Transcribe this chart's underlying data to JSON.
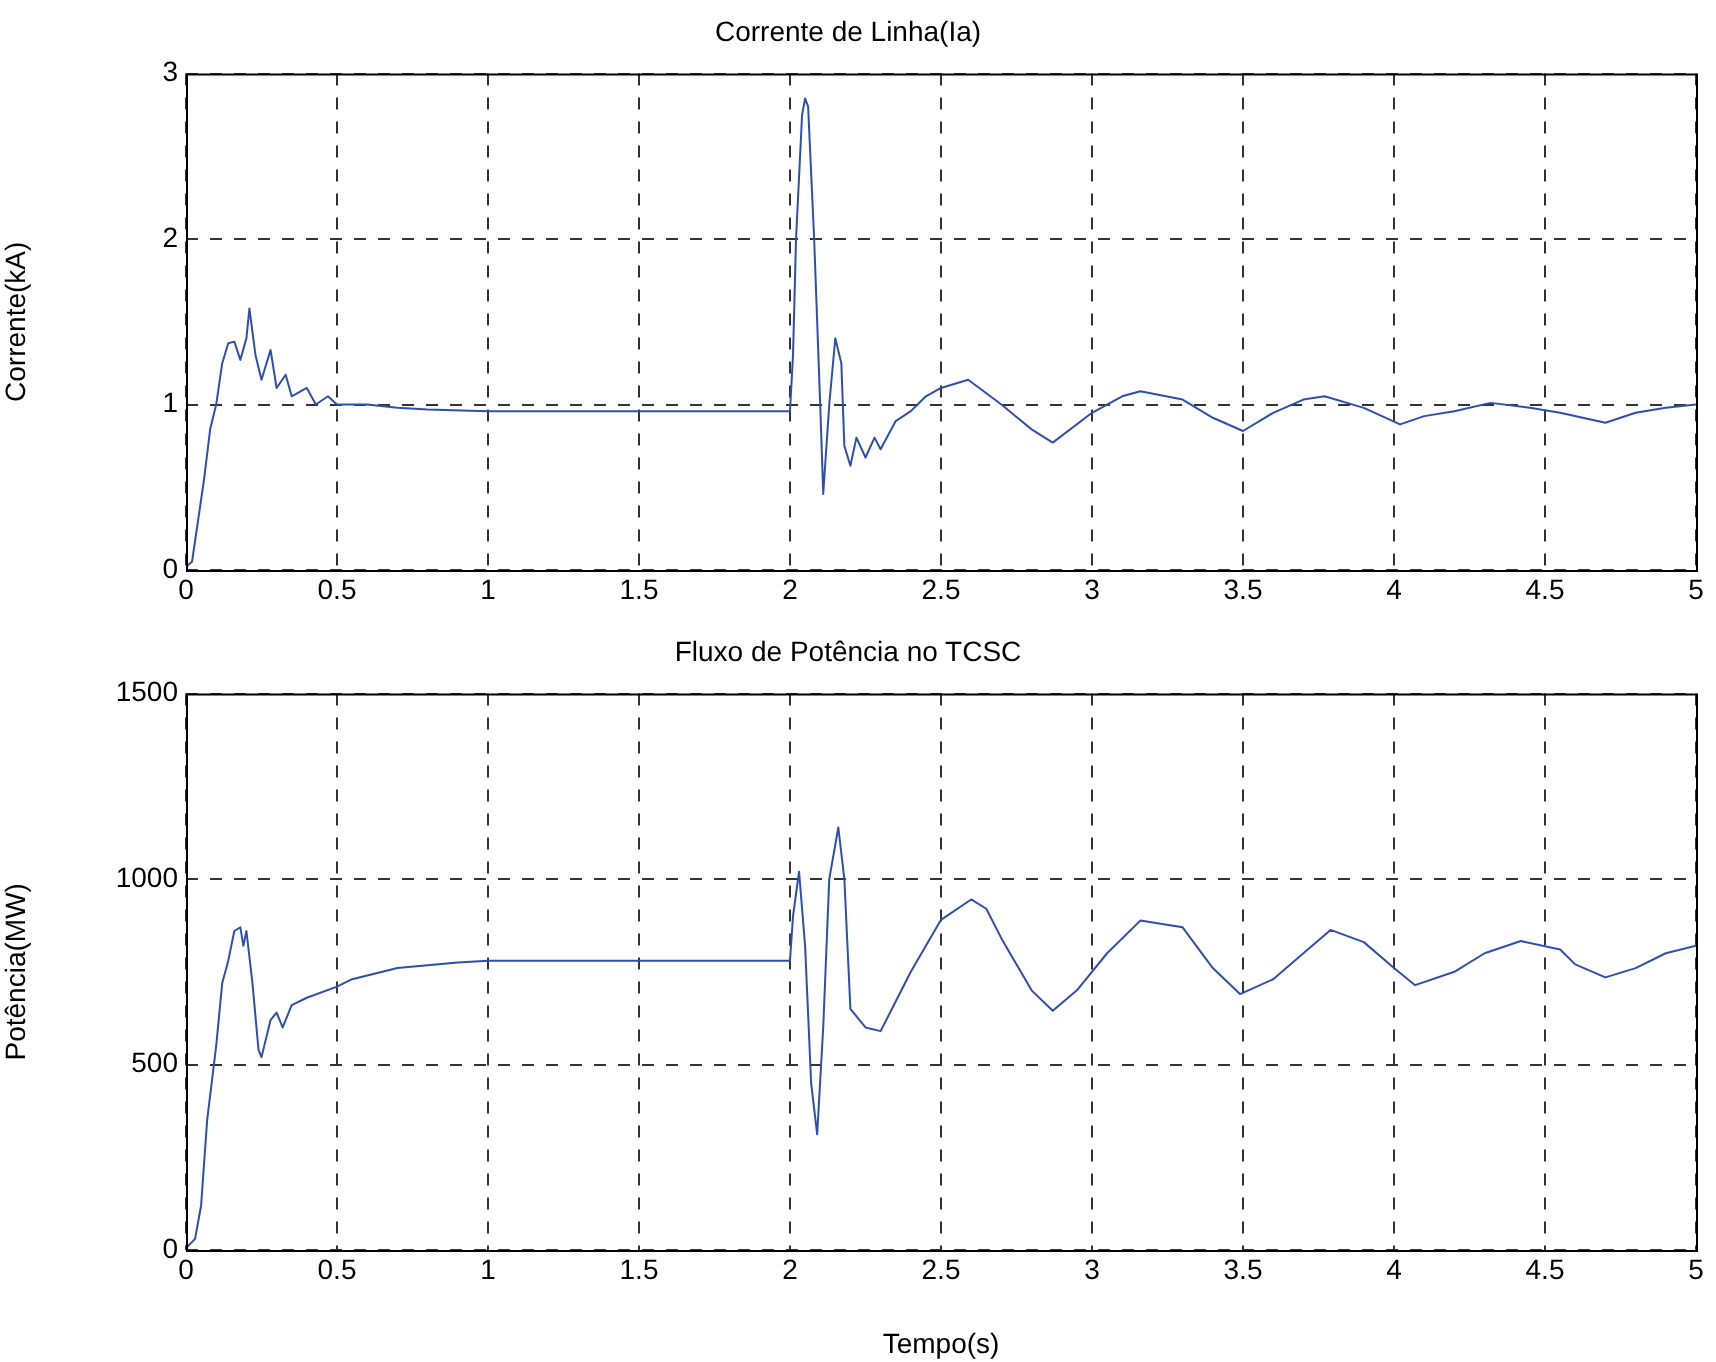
{
  "chart_data": [
    {
      "type": "line",
      "title": "Corrente de Linha(Ia)",
      "ylabel": "Corrente(kA)",
      "xlim": [
        0,
        5
      ],
      "xticks": [
        0,
        0.5,
        1,
        1.5,
        2,
        2.5,
        3,
        3.5,
        4,
        4.5,
        5
      ],
      "ylim": [
        0,
        3
      ],
      "yticks": [
        0,
        1,
        2,
        3
      ],
      "grid": true,
      "legend": false,
      "marker": "none",
      "line_style": "solid",
      "tick_labels": "xy",
      "series": [
        {
          "color": "#2f4fb0",
          "x": [
            0,
            0.02,
            0.04,
            0.06,
            0.08,
            0.1,
            0.12,
            0.14,
            0.16,
            0.18,
            0.2,
            0.21,
            0.23,
            0.25,
            0.28,
            0.3,
            0.33,
            0.35,
            0.4,
            0.43,
            0.47,
            0.5,
            0.6,
            0.7,
            0.8,
            1.0,
            2.0,
            2.01,
            2.02,
            2.04,
            2.05,
            2.06,
            2.07,
            2.08,
            2.1,
            2.11,
            2.13,
            2.15,
            2.17,
            2.18,
            2.2,
            2.22,
            2.25,
            2.28,
            2.3,
            2.35,
            2.4,
            2.45,
            2.5,
            2.59,
            2.7,
            2.8,
            2.87,
            3.0,
            3.1,
            3.16,
            3.3,
            3.4,
            3.5,
            3.6,
            3.7,
            3.77,
            3.9,
            4.02,
            4.1,
            4.2,
            4.32,
            4.45,
            4.55,
            4.7,
            4.8,
            4.9,
            5.0
          ],
          "values": [
            0.02,
            0.05,
            0.3,
            0.55,
            0.85,
            1.0,
            1.25,
            1.37,
            1.38,
            1.27,
            1.4,
            1.58,
            1.3,
            1.15,
            1.33,
            1.1,
            1.18,
            1.05,
            1.1,
            1.0,
            1.05,
            1.0,
            1.0,
            0.98,
            0.97,
            0.96,
            0.96,
            1.3,
            2.0,
            2.75,
            2.85,
            2.8,
            2.4,
            2.0,
            1.0,
            0.46,
            1.0,
            1.4,
            1.25,
            0.75,
            0.63,
            0.8,
            0.68,
            0.8,
            0.73,
            0.9,
            0.96,
            1.05,
            1.1,
            1.15,
            1.0,
            0.85,
            0.77,
            0.95,
            1.05,
            1.08,
            1.03,
            0.92,
            0.84,
            0.95,
            1.03,
            1.05,
            0.98,
            0.88,
            0.93,
            0.96,
            1.01,
            0.98,
            0.95,
            0.89,
            0.95,
            0.98,
            1.0
          ]
        }
      ]
    },
    {
      "type": "line",
      "title": "Fluxo de Potência no TCSC",
      "xlabel": "Tempo(s)",
      "ylabel": "Potência(MW)",
      "xlim": [
        0,
        5
      ],
      "xticks": [
        0,
        0.5,
        1,
        1.5,
        2,
        2.5,
        3,
        3.5,
        4,
        4.5,
        5
      ],
      "ylim": [
        0,
        1500
      ],
      "yticks": [
        0,
        500,
        1000,
        1500
      ],
      "grid": true,
      "legend": false,
      "marker": "none",
      "line_style": "solid",
      "tick_labels": "xy",
      "series": [
        {
          "color": "#2f4fb0",
          "x": [
            0,
            0.03,
            0.05,
            0.07,
            0.1,
            0.12,
            0.14,
            0.16,
            0.18,
            0.19,
            0.2,
            0.22,
            0.24,
            0.25,
            0.28,
            0.3,
            0.32,
            0.35,
            0.4,
            0.5,
            0.55,
            0.7,
            0.9,
            1.0,
            2.0,
            2.01,
            2.03,
            2.05,
            2.07,
            2.09,
            2.11,
            2.13,
            2.16,
            2.18,
            2.2,
            2.25,
            2.3,
            2.35,
            2.4,
            2.5,
            2.6,
            2.65,
            2.7,
            2.8,
            2.87,
            2.95,
            3.05,
            3.16,
            3.3,
            3.4,
            3.49,
            3.6,
            3.7,
            3.79,
            3.9,
            4.0,
            4.07,
            4.2,
            4.3,
            4.42,
            4.55,
            4.6,
            4.7,
            4.8,
            4.9,
            5.0
          ],
          "values": [
            5,
            30,
            120,
            350,
            550,
            720,
            780,
            860,
            870,
            820,
            860,
            720,
            540,
            520,
            620,
            640,
            600,
            660,
            680,
            710,
            730,
            760,
            775,
            780,
            780,
            900,
            1020,
            820,
            450,
            312,
            600,
            1000,
            1139,
            1000,
            650,
            600,
            590,
            670,
            750,
            890,
            945,
            920,
            840,
            700,
            645,
            700,
            800,
            888,
            870,
            760,
            690,
            730,
            800,
            863,
            830,
            760,
            714,
            750,
            800,
            833,
            810,
            770,
            735,
            760,
            800,
            820
          ]
        }
      ]
    }
  ]
}
